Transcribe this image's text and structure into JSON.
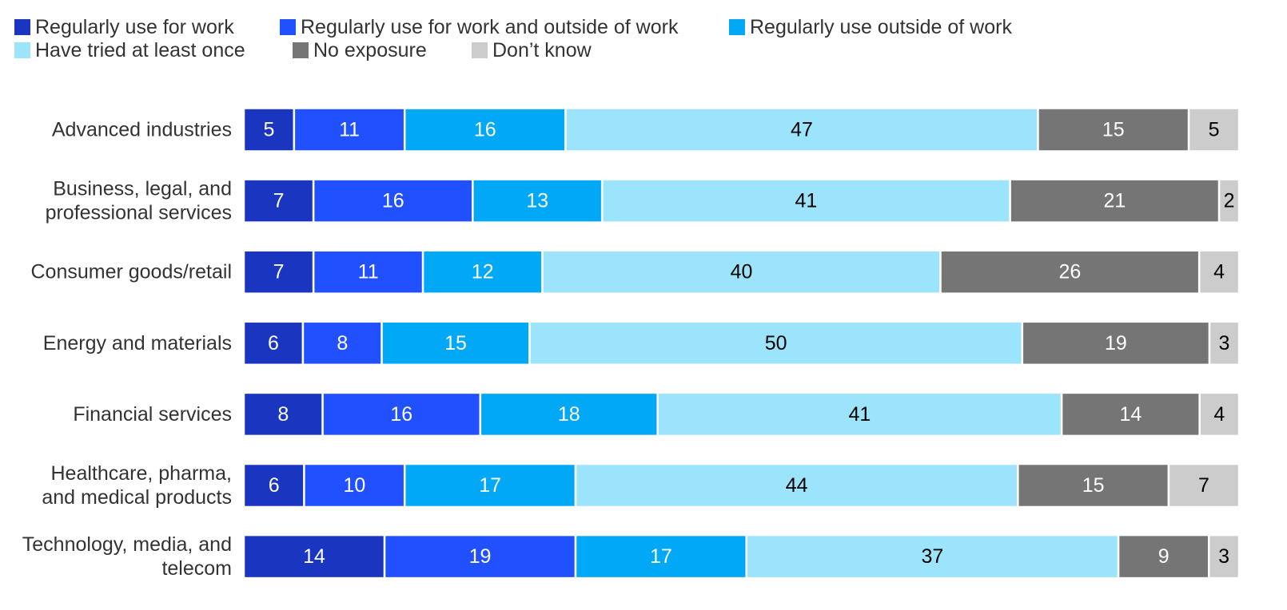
{
  "chart_data": {
    "type": "bar",
    "orientation": "horizontal",
    "stacked": true,
    "xlim": [
      0,
      100
    ],
    "grid": false,
    "legend_position": "top-left",
    "categories": [
      [
        "Advanced industries"
      ],
      [
        "Business, legal, and",
        "professional services"
      ],
      [
        "Consumer goods/retail"
      ],
      [
        "Energy and materials"
      ],
      [
        "Financial services"
      ],
      [
        "Healthcare, pharma,",
        "and medical products"
      ],
      [
        "Technology, media, and",
        "telecom"
      ]
    ],
    "series": [
      {
        "name": "Regularly use for work",
        "color": "#1a35c0",
        "label_color": "#ffffff",
        "values": [
          5,
          7,
          7,
          6,
          8,
          6,
          14
        ]
      },
      {
        "name": "Regularly use for work and outside of work",
        "color": "#2150ff",
        "label_color": "#ffffff",
        "values": [
          11,
          16,
          11,
          8,
          16,
          10,
          19
        ]
      },
      {
        "name": "Regularly use outside of work",
        "color": "#00a8f5",
        "label_color": "#ffffff",
        "values": [
          16,
          13,
          12,
          15,
          18,
          17,
          17
        ]
      },
      {
        "name": "Have tried at least once",
        "color": "#9ce4fc",
        "label_color": "#000000",
        "values": [
          47,
          41,
          40,
          50,
          41,
          44,
          37
        ]
      },
      {
        "name": "No exposure",
        "color": "#757575",
        "label_color": "#ffffff",
        "values": [
          15,
          21,
          26,
          19,
          14,
          15,
          9
        ]
      },
      {
        "name": "Don’t know",
        "color": "#cccccc",
        "label_color": "#000000",
        "values": [
          5,
          2,
          4,
          3,
          4,
          7,
          3
        ]
      }
    ]
  }
}
